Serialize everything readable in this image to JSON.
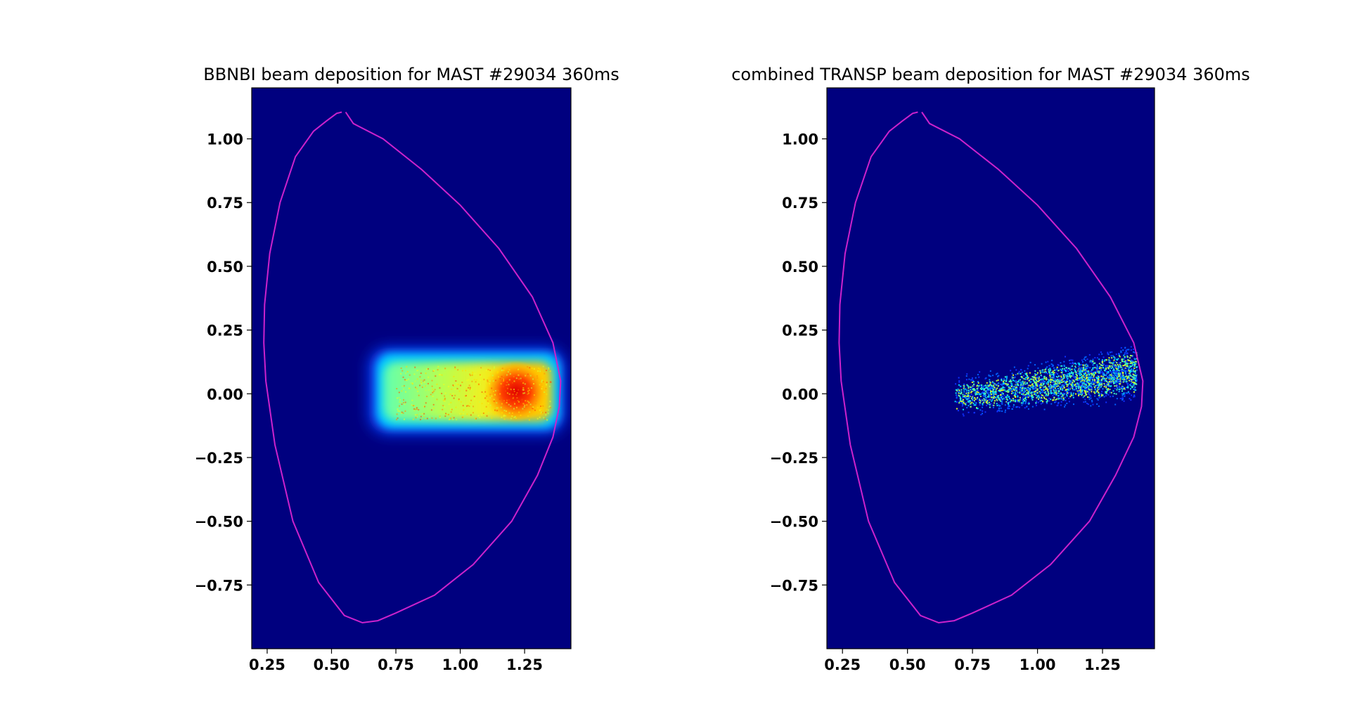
{
  "chart_data": [
    {
      "type": "heatmap",
      "title": "BBNBI beam deposition for MAST #29034 360ms",
      "xlabel": "",
      "ylabel": "",
      "xlim": [
        0.19,
        1.43
      ],
      "ylim": [
        -1.0,
        1.2
      ],
      "xticks": [
        "0.25",
        "0.50",
        "0.75",
        "1.00",
        "1.25"
      ],
      "yticks": [
        "1.00",
        "0.75",
        "0.50",
        "0.25",
        "0.00",
        "−0.25",
        "−0.50",
        "−0.75"
      ],
      "grid": false,
      "colormap": "jet",
      "background_color": "#00007f",
      "boundary_color": "#cc22cc",
      "deposition": {
        "shape": "horizontal band",
        "x_range": [
          0.68,
          1.38
        ],
        "y_range": [
          -0.13,
          0.16
        ],
        "peak": [
          1.2,
          0.0
        ]
      },
      "boundary": {
        "R": [
          0.555,
          0.585,
          0.7,
          0.85,
          1.0,
          1.15,
          1.28,
          1.36,
          1.39,
          1.385,
          1.36,
          1.3,
          1.2,
          1.05,
          0.9,
          0.75,
          0.68,
          0.62,
          0.55,
          0.45,
          0.35,
          0.28,
          0.245,
          0.237,
          0.24,
          0.26,
          0.3,
          0.36,
          0.43,
          0.48,
          0.52,
          0.54
        ],
        "Z": [
          1.105,
          1.06,
          1.0,
          0.88,
          0.74,
          0.57,
          0.38,
          0.2,
          0.05,
          -0.05,
          -0.17,
          -0.32,
          -0.5,
          -0.67,
          -0.79,
          -0.86,
          -0.89,
          -0.898,
          -0.87,
          -0.74,
          -0.5,
          -0.2,
          0.05,
          0.2,
          0.35,
          0.55,
          0.75,
          0.93,
          1.03,
          1.07,
          1.1,
          1.105
        ]
      }
    },
    {
      "type": "heatmap",
      "title": "combined TRANSP beam deposition for MAST #29034 360ms",
      "xlabel": "",
      "ylabel": "",
      "xlim": [
        0.19,
        1.45
      ],
      "ylim": [
        -1.0,
        1.2
      ],
      "xticks": [
        "0.25",
        "0.50",
        "0.75",
        "1.00",
        "1.25"
      ],
      "yticks": [
        "1.00",
        "0.75",
        "0.50",
        "0.25",
        "0.00",
        "−0.25",
        "−0.50",
        "−0.75"
      ],
      "grid": false,
      "colormap": "jet",
      "background_color": "#00007f",
      "boundary_color": "#cc22cc",
      "deposition": {
        "shape": "tilted sparse band",
        "x_range": [
          0.68,
          1.38
        ],
        "y_range": [
          -0.13,
          0.18
        ],
        "peak": [
          1.15,
          0.08
        ]
      },
      "boundary": {
        "R": [
          0.555,
          0.585,
          0.7,
          0.85,
          1.0,
          1.15,
          1.28,
          1.37,
          1.405,
          1.4,
          1.37,
          1.3,
          1.2,
          1.05,
          0.9,
          0.75,
          0.68,
          0.62,
          0.55,
          0.45,
          0.35,
          0.28,
          0.245,
          0.237,
          0.24,
          0.26,
          0.3,
          0.36,
          0.43,
          0.48,
          0.52,
          0.54
        ],
        "Z": [
          1.105,
          1.06,
          1.0,
          0.88,
          0.74,
          0.57,
          0.38,
          0.2,
          0.05,
          -0.05,
          -0.17,
          -0.32,
          -0.5,
          -0.67,
          -0.79,
          -0.86,
          -0.89,
          -0.898,
          -0.87,
          -0.74,
          -0.5,
          -0.2,
          0.05,
          0.2,
          0.35,
          0.55,
          0.75,
          0.93,
          1.03,
          1.07,
          1.1,
          1.105
        ]
      }
    }
  ]
}
